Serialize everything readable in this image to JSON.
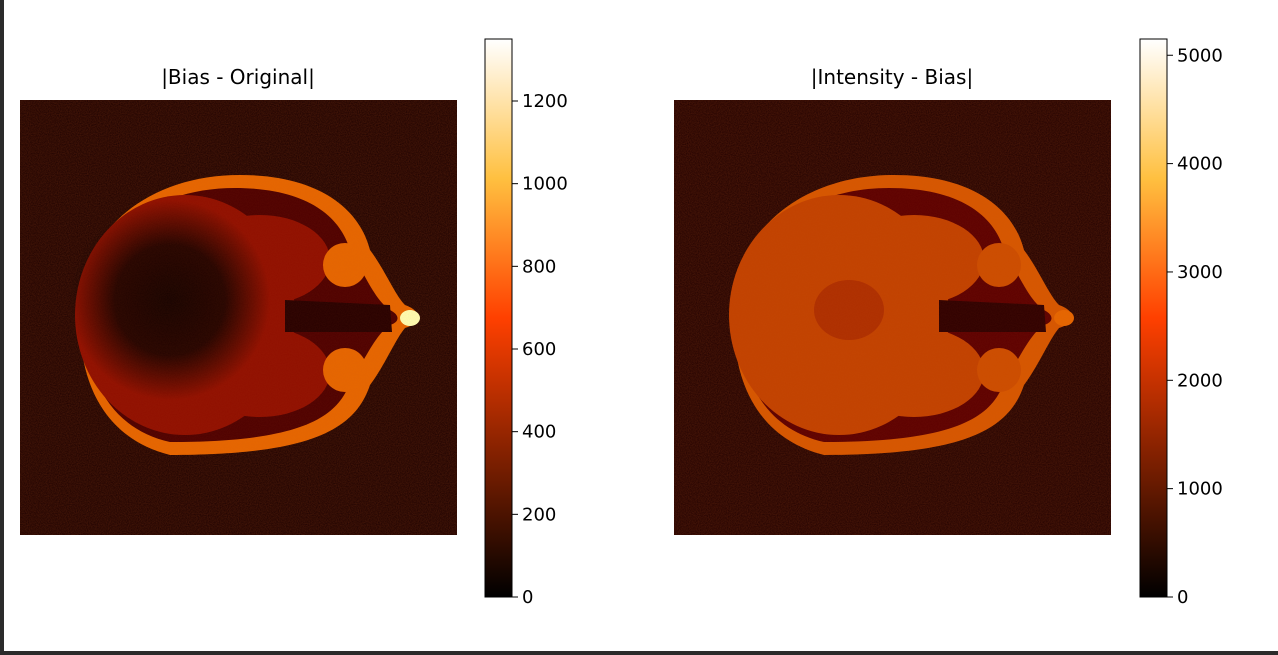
{
  "chart_data": [
    {
      "type": "heatmap",
      "title": "|Bias - Original|",
      "colormap": "afmhot",
      "colorbar": {
        "range": [
          0,
          1350
        ],
        "ticks": [
          0,
          200,
          400,
          600,
          800,
          1000,
          1200
        ],
        "tick_labels": [
          "0",
          "200",
          "400",
          "600",
          "800",
          "1000",
          "1200"
        ]
      },
      "image": {
        "content": "axial MRI head slice",
        "brain_level": 0.28,
        "skin_level": 0.45,
        "eyes_level": 0.45,
        "nose_tip_level": 0.85,
        "center_dark_level": 0.12,
        "background_level": 0.05
      }
    },
    {
      "type": "heatmap",
      "title": "|Intensity - Bias|",
      "colormap": "afmhot",
      "colorbar": {
        "range": [
          0,
          5150
        ],
        "ticks": [
          0,
          1000,
          2000,
          3000,
          4000,
          5000
        ],
        "tick_labels": [
          "0",
          "1000",
          "2000",
          "3000",
          "4000",
          "5000"
        ]
      },
      "image": {
        "content": "axial MRI head slice",
        "brain_level": 0.38,
        "skin_level": 0.42,
        "eyes_level": 0.4,
        "nose_tip_level": 0.45,
        "background_level": 0.06
      }
    }
  ],
  "colors": {
    "frame": "#2b2b2b",
    "background": "#ffffff",
    "afmhot_stops": [
      "#000000",
      "#802000",
      "#ff5000",
      "#ffb080",
      "#ffffff"
    ]
  }
}
